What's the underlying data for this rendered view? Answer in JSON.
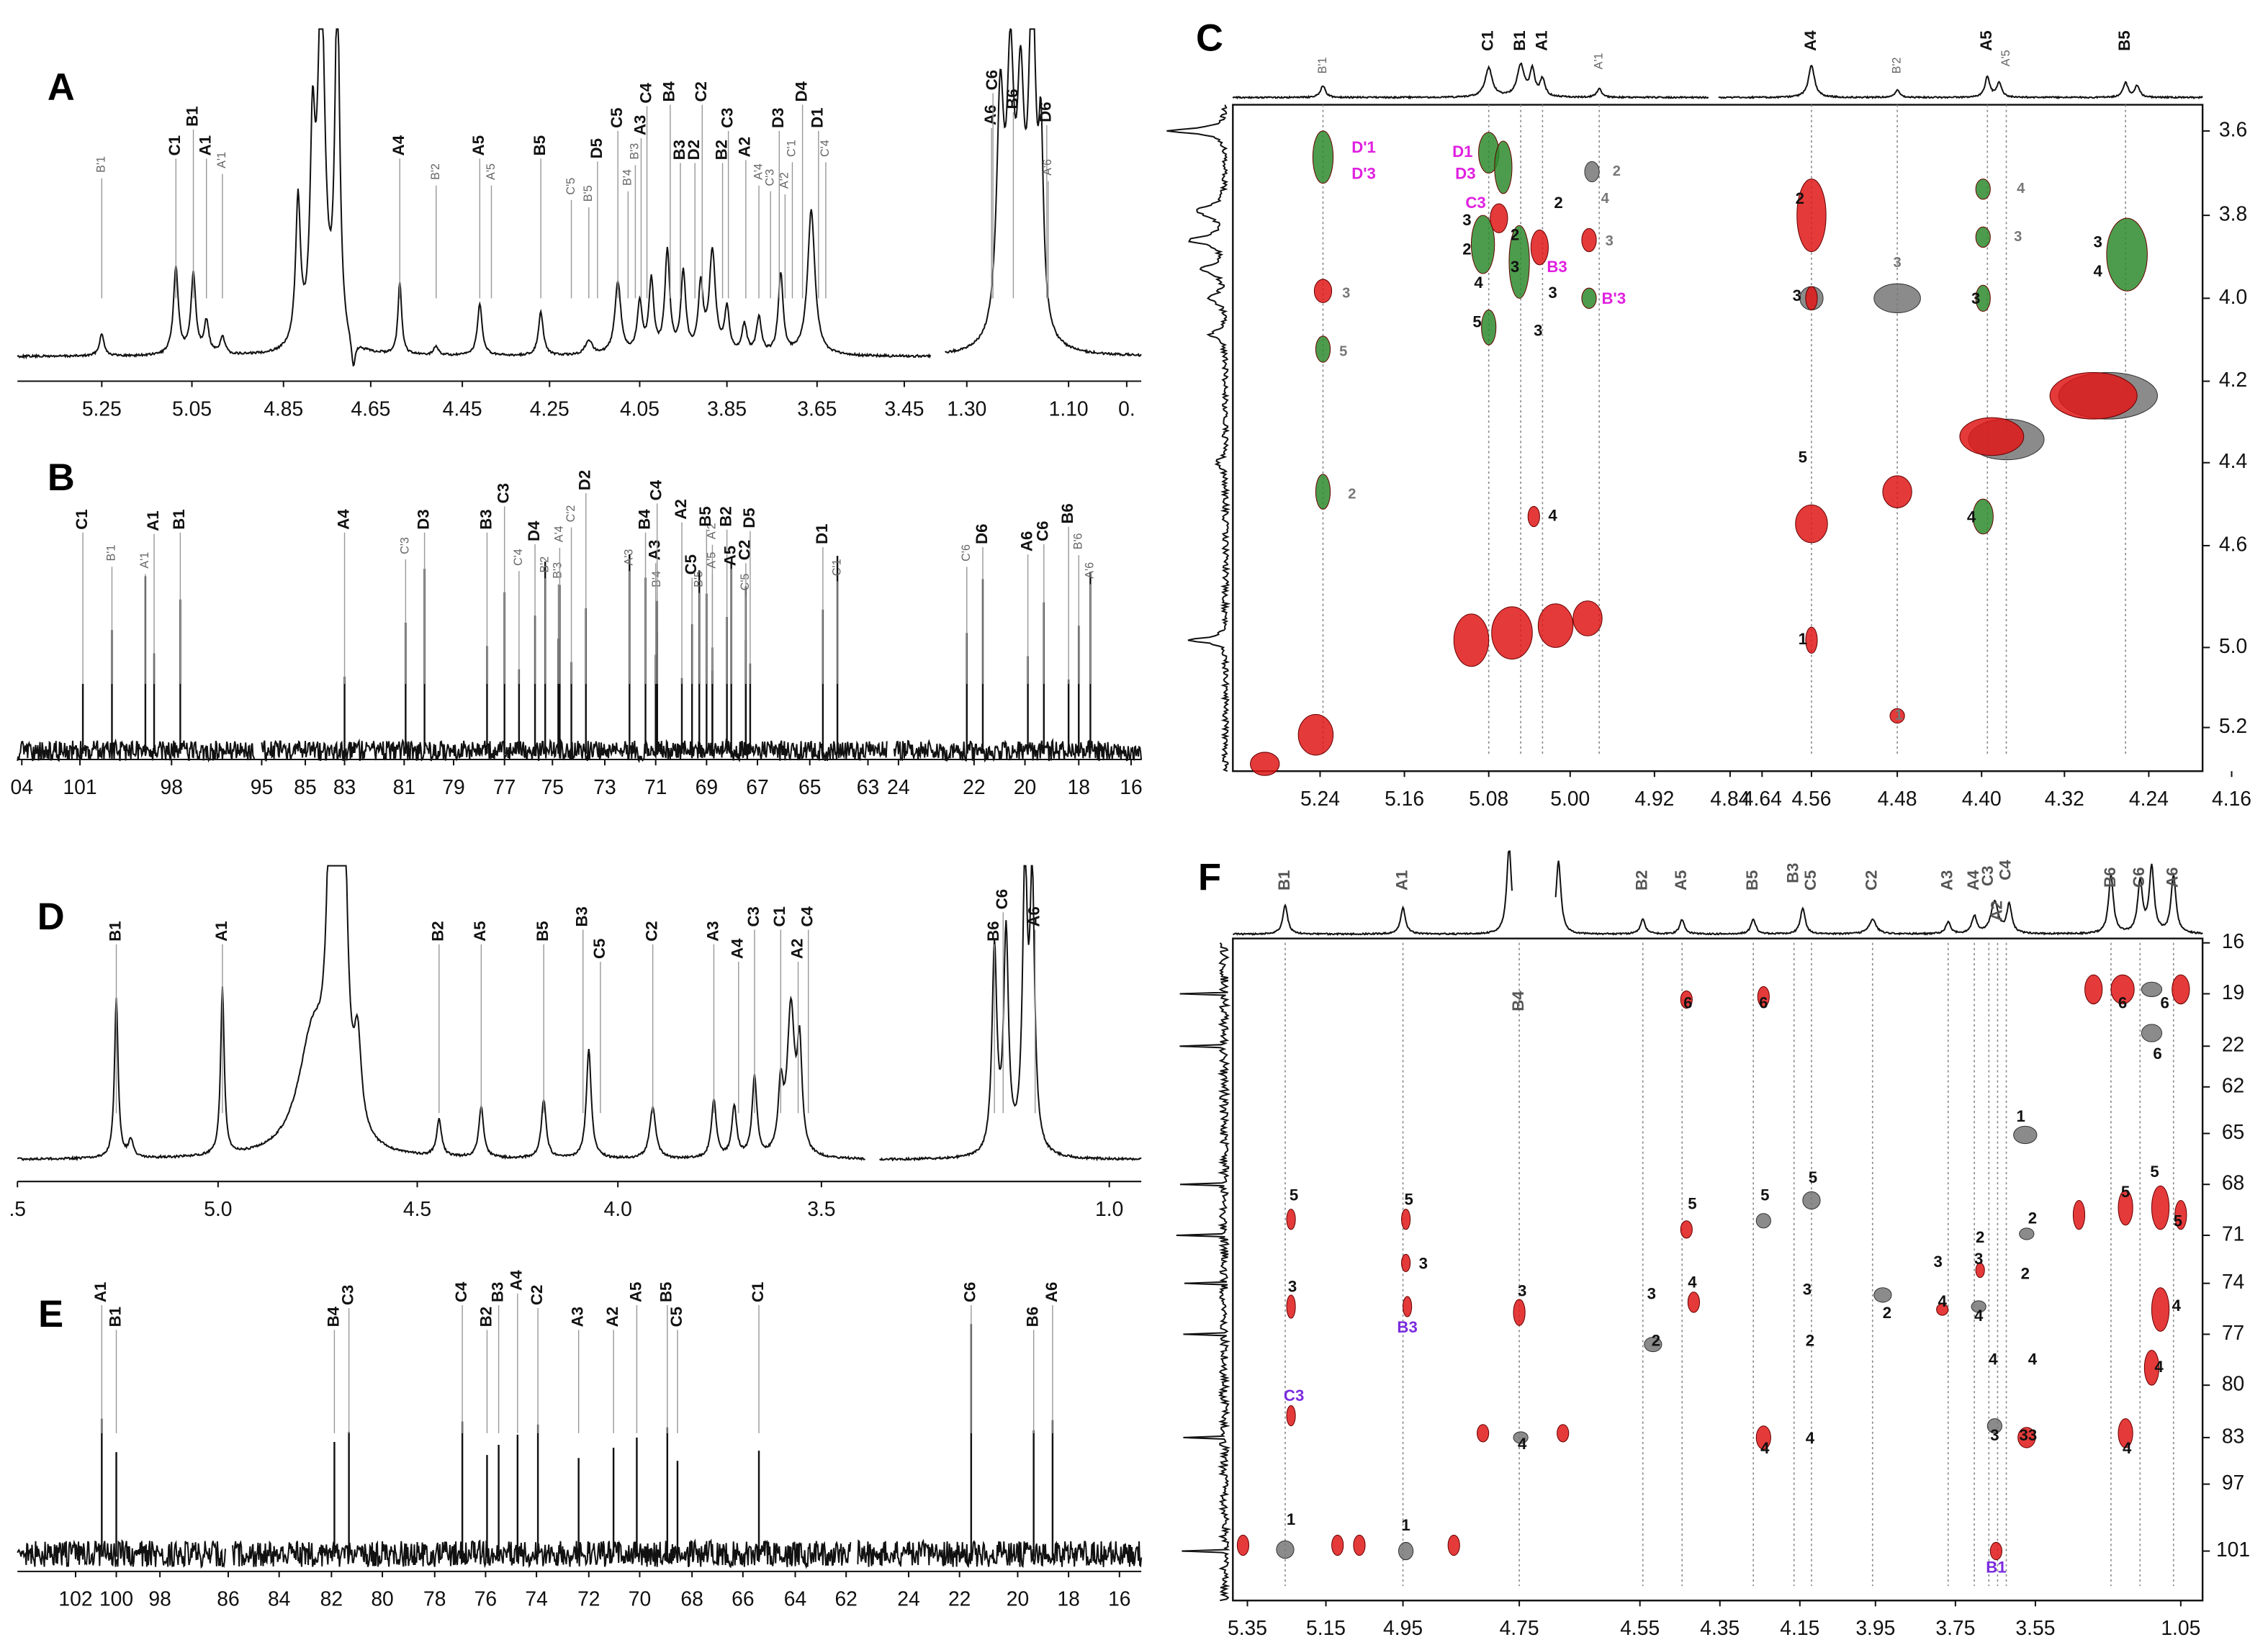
{
  "panels": [
    {
      "letter": "A",
      "xticks": [
        "5.25",
        "5.05",
        "4.85",
        "4.65",
        "4.45",
        "4.25",
        "4.05",
        "3.85",
        "3.65",
        "3.45",
        "1.30",
        "1.10",
        "0."
      ],
      "peaks": [
        "B'1",
        "C1",
        "B1",
        "A1",
        "A'1",
        "A4",
        "B'2",
        "A5",
        "A'5",
        "B5",
        "C'5",
        "B'5",
        "D5",
        "C5",
        "B'4",
        "B'3",
        "A3",
        "C4",
        "B4",
        "B3",
        "D2",
        "C2",
        "B2",
        "C3",
        "A2",
        "A'4",
        "C'3",
        "D3",
        "A'2",
        "C'1",
        "D4",
        "D1",
        "C'4",
        "A6",
        "C6",
        "B6",
        "D6",
        "A'6"
      ]
    },
    {
      "letter": "B",
      "xticks": [
        "04",
        "101",
        "98",
        "95",
        "85",
        "83",
        "81",
        "79",
        "77",
        "75",
        "73",
        "71",
        "69",
        "67",
        "65",
        "63",
        "24",
        "22",
        "20",
        "18",
        "16"
      ],
      "peaks": [
        "C1",
        "B'1",
        "A'1",
        "A1",
        "B1",
        "A4",
        "C'3",
        "D3",
        "B3",
        "C3",
        "C'4",
        "D4",
        "B'2",
        "B'3",
        "A'4",
        "C'2",
        "D2",
        "A'3",
        "B'4",
        "B4",
        "A3",
        "C4",
        "A2",
        "C5",
        "B'5",
        "A'2",
        "B5",
        "A'5",
        "B2",
        "A5",
        "C2",
        "C'5",
        "D5",
        "D1",
        "C'1",
        "C'6",
        "D6",
        "A6",
        "C6",
        "B6",
        "B'6",
        "A'6"
      ]
    },
    {
      "letter": "C",
      "xticks": [
        "5.24",
        "5.16",
        "5.08",
        "5.00",
        "4.92",
        "4.84",
        "4.64",
        "4.56",
        "4.48",
        "4.40",
        "4.32",
        "4.24",
        "4.16"
      ],
      "yticks": [
        "3.6",
        "3.8",
        "4.0",
        "4.2",
        "4.4",
        "4.6",
        "5.0",
        "5.2"
      ],
      "peaks": [
        "B'1",
        "C1",
        "B1",
        "A1",
        "A'1",
        "A4",
        "B'2",
        "A5",
        "A'5",
        "B5"
      ],
      "crosspeaks": [
        "D'1",
        "D'3",
        "D1",
        "D3",
        "C3",
        "B3",
        "B'3",
        "3",
        "5",
        "2",
        "3",
        "2",
        "2",
        "3",
        "2",
        "4",
        "5",
        "3",
        "3",
        "2",
        "4",
        "3",
        "4",
        "2",
        "3",
        "5",
        "1",
        "3",
        "1",
        "4",
        "3",
        "3",
        "4",
        "3",
        "4"
      ]
    },
    {
      "letter": "D",
      "xticks": [
        ".5",
        "5.0",
        "4.5",
        "4.0",
        "3.5",
        "1.0"
      ],
      "peaks": [
        "B1",
        "A1",
        "B2",
        "A5",
        "B5",
        "B3",
        "C5",
        "C2",
        "A3",
        "A4",
        "C3",
        "C1",
        "A2",
        "C4",
        "B6",
        "C6",
        "A6"
      ]
    },
    {
      "letter": "E",
      "xticks": [
        "102",
        "100",
        "98",
        "86",
        "84",
        "82",
        "80",
        "78",
        "76",
        "74",
        "72",
        "70",
        "68",
        "66",
        "64",
        "62",
        "24",
        "22",
        "20",
        "18",
        "16"
      ],
      "peaks": [
        "A1",
        "B1",
        "B4",
        "C3",
        "C4",
        "B2",
        "B3",
        "A4",
        "C2",
        "A3",
        "A2",
        "A5",
        "B5",
        "C5",
        "C1",
        "C6",
        "B6",
        "A6"
      ]
    },
    {
      "letter": "F",
      "xticks": [
        "5.35",
        "5.15",
        "4.95",
        "4.75",
        "4.55",
        "4.35",
        "4.15",
        "3.95",
        "3.75",
        "3.55",
        "1.05"
      ],
      "yticks": [
        "16",
        "19",
        "22",
        "62",
        "65",
        "68",
        "71",
        "74",
        "77",
        "80",
        "83",
        "97",
        "101"
      ],
      "peaks": [
        "B1",
        "A1",
        "B4",
        "B2",
        "A5",
        "B5",
        "B3",
        "C5",
        "C2",
        "A3",
        "A4",
        "C3",
        "C4",
        "A2",
        "B6",
        "C6",
        "A6"
      ],
      "crosspeaks": [
        "6",
        "6",
        "6",
        "6",
        "6",
        "1",
        "5",
        "5",
        "3",
        "5",
        "5",
        "5",
        "2",
        "2",
        "3",
        "3",
        "5",
        "5",
        "5",
        "3",
        "B3",
        "3",
        "3",
        "4",
        "2",
        "3",
        "2",
        "2",
        "4",
        "4",
        "2",
        "4",
        "4",
        "4",
        "4",
        "C3",
        "4",
        "4",
        "4",
        "3",
        "33",
        "4",
        "1",
        "1",
        "B1"
      ]
    }
  ]
}
